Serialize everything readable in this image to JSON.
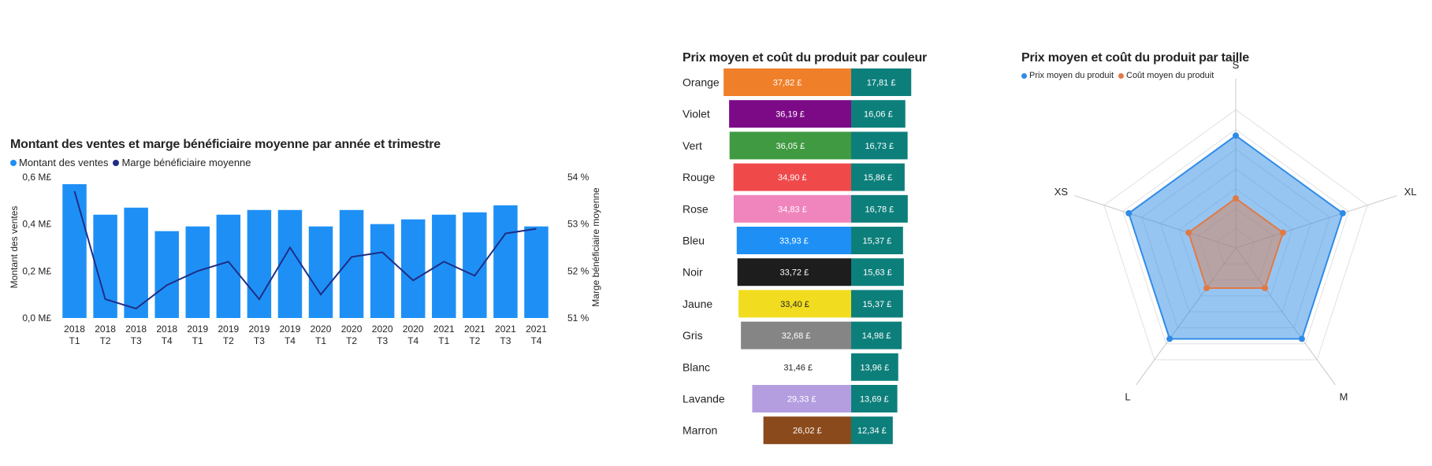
{
  "colors": {
    "bar_blue": "#1e90f5",
    "line_navy": "#1f2d86",
    "cost_teal": "#0d7f7b",
    "radar_blue": "#2f8be6",
    "radar_orange": "#e07a45"
  },
  "chart_data": [
    {
      "type": "bar",
      "combo": "bar+line",
      "title": "Montant des ventes et marge bénéficiaire moyenne par année et trimestre",
      "legend": [
        "Montant des ventes",
        "Marge bénéficiaire moyenne"
      ],
      "legend_position": "top-left",
      "ylabel": "Montant des ventes",
      "y2label": "Marge bénéficiaire moyenne",
      "ylim": [
        0,
        0.6
      ],
      "y_ticks": [
        "0,0 M£",
        "0,2 M£",
        "0,4 M£",
        "0,6 M£"
      ],
      "y2lim": [
        51,
        54
      ],
      "y2_ticks": [
        "51 %",
        "52 %",
        "53 %",
        "54 %"
      ],
      "categories": [
        [
          "2018",
          "T1"
        ],
        [
          "2018",
          "T2"
        ],
        [
          "2018",
          "T3"
        ],
        [
          "2018",
          "T4"
        ],
        [
          "2019",
          "T1"
        ],
        [
          "2019",
          "T2"
        ],
        [
          "2019",
          "T3"
        ],
        [
          "2019",
          "T4"
        ],
        [
          "2020",
          "T1"
        ],
        [
          "2020",
          "T2"
        ],
        [
          "2020",
          "T3"
        ],
        [
          "2020",
          "T4"
        ],
        [
          "2021",
          "T1"
        ],
        [
          "2021",
          "T2"
        ],
        [
          "2021",
          "T3"
        ],
        [
          "2021",
          "T4"
        ]
      ],
      "series": [
        {
          "name": "Montant des ventes",
          "kind": "bar",
          "values": [
            0.57,
            0.44,
            0.47,
            0.37,
            0.39,
            0.44,
            0.46,
            0.46,
            0.39,
            0.46,
            0.4,
            0.42,
            0.44,
            0.45,
            0.48,
            0.39
          ]
        },
        {
          "name": "Marge bénéficiaire moyenne",
          "kind": "line",
          "values": [
            53.7,
            51.4,
            51.2,
            51.7,
            52.0,
            52.2,
            51.4,
            52.5,
            51.5,
            52.3,
            52.4,
            51.8,
            52.2,
            51.9,
            52.8,
            52.9
          ]
        }
      ],
      "grid": false
    },
    {
      "type": "bar",
      "orientation": "horizontal",
      "title": "Prix moyen et coût du produit par couleur",
      "categories": [
        "Orange",
        "Violet",
        "Vert",
        "Rouge",
        "Rose",
        "Bleu",
        "Noir",
        "Jaune",
        "Gris",
        "Blanc",
        "Lavande",
        "Marron"
      ],
      "bar_colors": [
        "#f07f2a",
        "#7c0a86",
        "#3f9a41",
        "#f0494a",
        "#f084bd",
        "#1e90f5",
        "#1d1d1d",
        "#f1dc1f",
        "#858585",
        "#ffffff",
        "#b49ee0",
        "#8a4a1b"
      ],
      "label_colors": [
        "#ffffff",
        "#ffffff",
        "#ffffff",
        "#ffffff",
        "#ffffff",
        "#ffffff",
        "#ffffff",
        "#252423",
        "#ffffff",
        "#252423",
        "#ffffff",
        "#ffffff"
      ],
      "series": [
        {
          "name": "Prix moyen du produit",
          "values": [
            37.82,
            36.19,
            36.05,
            34.9,
            34.83,
            33.93,
            33.72,
            33.4,
            32.68,
            31.46,
            29.33,
            26.02
          ],
          "labels": [
            "37,82 £",
            "36,19 £",
            "36,05 £",
            "34,90 £",
            "34,83 £",
            "33,93 £",
            "33,72 £",
            "33,40 £",
            "32,68 £",
            "31,46 £",
            "29,33 £",
            "26,02 £"
          ]
        },
        {
          "name": "Coût moyen du produit",
          "values": [
            17.81,
            16.06,
            16.73,
            15.86,
            16.78,
            15.37,
            15.63,
            15.37,
            14.98,
            13.96,
            13.69,
            12.34
          ],
          "labels": [
            "17,81 £",
            "16,06 £",
            "16,73 £",
            "15,86 £",
            "16,78 £",
            "15,37 £",
            "15,63 £",
            "15,37 £",
            "14,98 £",
            "13,96 £",
            "13,69 £",
            "12,34 £"
          ]
        }
      ]
    },
    {
      "type": "radar",
      "title": "Prix moyen et coût du produit par taille",
      "legend": [
        "Prix moyen du produit",
        "Coût moyen du produit"
      ],
      "legend_position": "top-left",
      "categories": [
        "S",
        "XL",
        "M",
        "L",
        "XS"
      ],
      "series": [
        {
          "name": "Prix moyen du produit",
          "values": [
            34,
            34,
            34,
            34,
            34
          ]
        },
        {
          "name": "Coût moyen du produit",
          "values": [
            15,
            15,
            15,
            15,
            15
          ]
        }
      ],
      "rmax": 42,
      "grid": true
    }
  ]
}
